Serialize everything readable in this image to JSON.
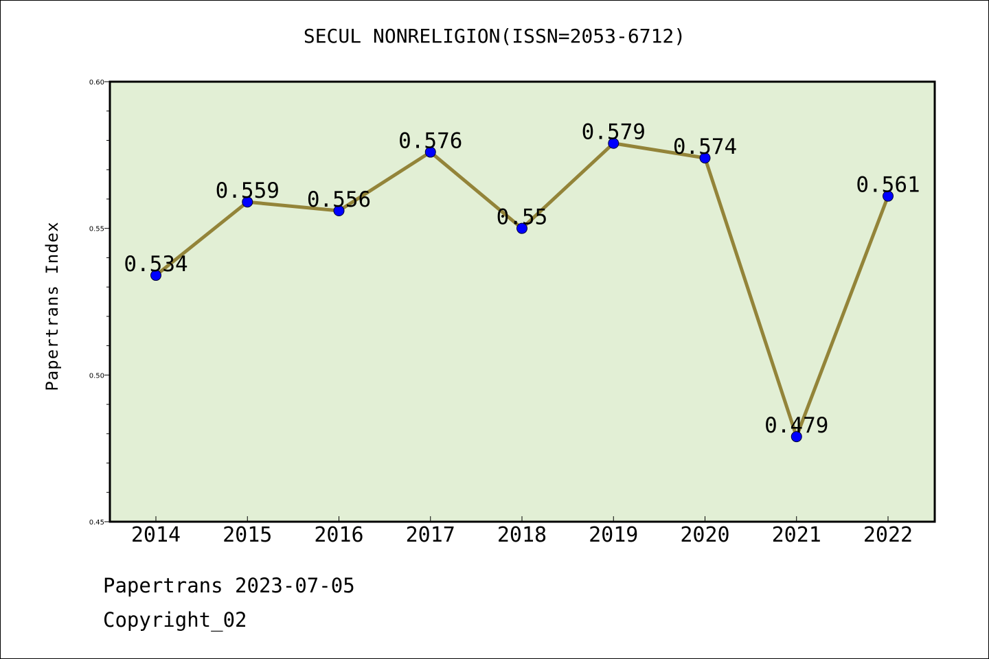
{
  "chart_data": {
    "type": "line",
    "title": "SECUL NONRELIGION(ISSN=2053-6712)",
    "xlabel": "",
    "ylabel": "Papertrans Index",
    "categories": [
      "2014",
      "2015",
      "2016",
      "2017",
      "2018",
      "2019",
      "2020",
      "2021",
      "2022"
    ],
    "series": [
      {
        "values": [
          0.534,
          0.559,
          0.556,
          0.576,
          0.55,
          0.579,
          0.574,
          0.479,
          0.561
        ],
        "labels": [
          "0.534",
          "0.559",
          "0.556",
          "0.576",
          "0.55",
          "0.579",
          "0.574",
          "0.479",
          "0.561"
        ]
      }
    ],
    "ylim": [
      0.45,
      0.6
    ],
    "yticks": [
      {
        "value": 0.45,
        "label": "0.45"
      },
      {
        "value": 0.5,
        "label": "0.50"
      },
      {
        "value": 0.55,
        "label": "0.55"
      },
      {
        "value": 0.6,
        "label": "0.60"
      }
    ],
    "grid": false,
    "colors": {
      "plot_background": "#e2efd5",
      "line": "#938439",
      "marker": "#0000ff",
      "axis": "#000000"
    }
  },
  "footer": {
    "date_line": "Papertrans 2023-07-05",
    "copyright": "Copyright_02"
  }
}
